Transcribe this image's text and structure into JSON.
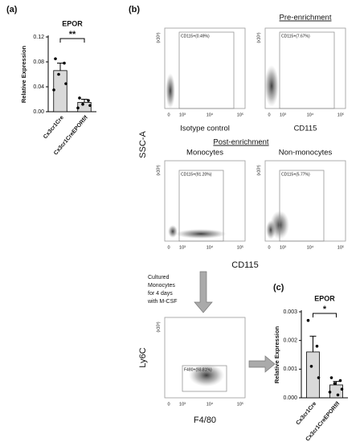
{
  "figure_labels": [
    "(a)",
    "(b)",
    "(c)"
  ],
  "chart_data": [
    {
      "type": "bar",
      "title": "EPOR",
      "y_label": "Relative Expression",
      "categories": [
        "Cx3cr1Cre",
        "Cx3cr1CreEPORf/f"
      ],
      "values": [
        0.066,
        0.015
      ],
      "errors": [
        0.012,
        0.005
      ],
      "points": [
        [
          0.085,
          0.078,
          0.06,
          0.045,
          0.035
        ],
        [
          0.022,
          0.018,
          0.012,
          0.01,
          0.006
        ]
      ],
      "color": "#d9d9d9",
      "ylim": [
        0,
        0.12
      ],
      "yticks": [
        {
          "value": 0,
          "label": "0.00"
        },
        {
          "value": 0.04,
          "label": "0.04"
        },
        {
          "value": 0.08,
          "label": "0.08"
        },
        {
          "value": 0.12,
          "label": "0.12"
        }
      ],
      "significance": "**"
    },
    {
      "type": "bar",
      "title": "EPOR",
      "y_label": "Relative Expression",
      "categories": [
        "Cx3cr1Cre",
        "Cx3cr1CreEPORf/f"
      ],
      "values": [
        0.0016,
        0.00045
      ],
      "errors": [
        0.00055,
        0.00012
      ],
      "points": [
        [
          0.0027,
          0.0018,
          0.0011,
          0.0007
        ],
        [
          0.0007,
          0.0006,
          0.0005,
          0.0003,
          0.0002,
          0.0001
        ]
      ],
      "color": "#d9d9d9",
      "ylim": [
        0,
        0.003
      ],
      "yticks": [
        {
          "value": 0,
          "label": "0.000"
        },
        {
          "value": 0.001,
          "label": "0.001"
        },
        {
          "value": 0.002,
          "label": "0.002"
        },
        {
          "value": 0.003,
          "label": "0.003"
        }
      ],
      "significance": "*"
    }
  ],
  "flow": {
    "pre_label": "Pre-enrichment",
    "post_label": "Post-enrichment",
    "ssc_label": "SSC-A",
    "cd115_label": "CD115",
    "ly6c_label": "Ly6C",
    "f480_label": "F4/80",
    "y_scale_label": "(x10³)",
    "x_ticks": [
      "0",
      "10³",
      "10⁴",
      "10⁵"
    ],
    "culture_note": [
      "Cultured",
      "Monocytes",
      "for 4 days",
      "with M-CSF"
    ],
    "plots": [
      {
        "gate": "CD115+(0.49%)",
        "caption": "Isotype control"
      },
      {
        "gate": "CD115+(7.67%)",
        "caption": "CD115"
      },
      {
        "gate": "CD115+(91.20%)",
        "caption": "Monocytes"
      },
      {
        "gate": "CD115+(5.77%)",
        "caption": "Non-monocytes"
      },
      {
        "gate": "F480+(93.81%)"
      }
    ]
  }
}
